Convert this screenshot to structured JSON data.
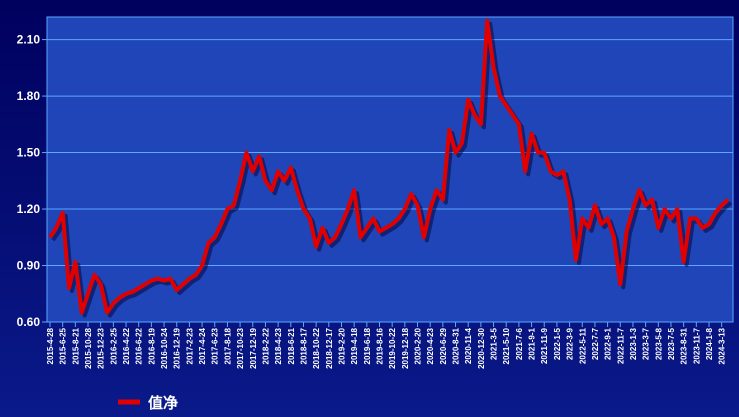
{
  "chart_data": {
    "type": "line",
    "categories": [
      "2015-4-28",
      null,
      "2015-6-25",
      null,
      "2015-8-21",
      null,
      "2015-10-28",
      null,
      "2015-12-23",
      null,
      "2016-2-25",
      null,
      "2016-4-22",
      null,
      "2016-6-22",
      null,
      "2016-8-19",
      null,
      "2016-10-24",
      null,
      "2016-12-19",
      null,
      "2017-2-23",
      null,
      "2017-4-24",
      null,
      "2017-6-23",
      null,
      "2017-8-18",
      null,
      "2017-10-23",
      null,
      "2017-12-19",
      null,
      "2018-2-22",
      null,
      "2018-4-23",
      null,
      "2018-6-21",
      null,
      "2018-8-17",
      null,
      "2018-10-22",
      null,
      "2018-12-17",
      null,
      "2019-2-20",
      null,
      "2019-4-18",
      null,
      "2019-6-18",
      null,
      "2019-8-16",
      null,
      "2019-10-22",
      null,
      "2019-12-18",
      null,
      "2020-2-20",
      null,
      "2020-4-23",
      null,
      "2020-6-29",
      null,
      "2020-8-31",
      null,
      "2020-11-4",
      null,
      "2020-12-30",
      null,
      "2021-3-5",
      null,
      "2021-5-10",
      null,
      "2021-7-6",
      null,
      "2021-9-1",
      null,
      "2021-11-9",
      null,
      "2022-1-5",
      null,
      "2022-3-9",
      null,
      "2022-5-11",
      null,
      "2022-7-7",
      null,
      "2022-9-1",
      null,
      "2022-11-7",
      null,
      "2023-1-3",
      null,
      "2023-3-7",
      null,
      "2023-5-8",
      null,
      "2023-7-5",
      null,
      "2023-8-31",
      null,
      "2023-11-7",
      null,
      "2024-1-8",
      null,
      "2024-3-13",
      null
    ],
    "series": [
      {
        "name": "值净",
        "color": "#e00000",
        "values": [
          1.05,
          1.1,
          1.18,
          0.78,
          0.92,
          0.65,
          0.75,
          0.85,
          0.8,
          0.65,
          0.7,
          0.73,
          0.75,
          0.76,
          0.78,
          0.8,
          0.82,
          0.83,
          0.82,
          0.83,
          0.77,
          0.8,
          0.83,
          0.85,
          0.9,
          1.02,
          1.05,
          1.12,
          1.2,
          1.22,
          1.35,
          1.5,
          1.4,
          1.48,
          1.35,
          1.3,
          1.4,
          1.35,
          1.42,
          1.3,
          1.2,
          1.15,
          1.0,
          1.1,
          1.02,
          1.05,
          1.12,
          1.2,
          1.3,
          1.05,
          1.1,
          1.15,
          1.08,
          1.1,
          1.12,
          1.15,
          1.2,
          1.28,
          1.22,
          1.05,
          1.2,
          1.3,
          1.25,
          1.62,
          1.5,
          1.55,
          1.78,
          1.7,
          1.65,
          2.2,
          1.95,
          1.8,
          1.75,
          1.7,
          1.65,
          1.4,
          1.6,
          1.5,
          1.5,
          1.4,
          1.38,
          1.4,
          1.25,
          0.93,
          1.15,
          1.1,
          1.22,
          1.12,
          1.15,
          1.05,
          0.8,
          1.08,
          1.2,
          1.3,
          1.22,
          1.25,
          1.1,
          1.2,
          1.15,
          1.2,
          0.92,
          1.15,
          1.15,
          1.1,
          1.12,
          1.18,
          1.22,
          1.25
        ]
      }
    ],
    "ylim": [
      0.6,
      2.22
    ],
    "yticks": [
      {
        "value": 0.6,
        "label": "0.60"
      },
      {
        "value": 0.9,
        "label": "0.90"
      },
      {
        "value": 1.2,
        "label": "1.20"
      },
      {
        "value": 1.5,
        "label": "1.50"
      },
      {
        "value": 1.8,
        "label": "1.80"
      },
      {
        "value": 2.1,
        "label": "2.10"
      }
    ],
    "grid": true
  }
}
